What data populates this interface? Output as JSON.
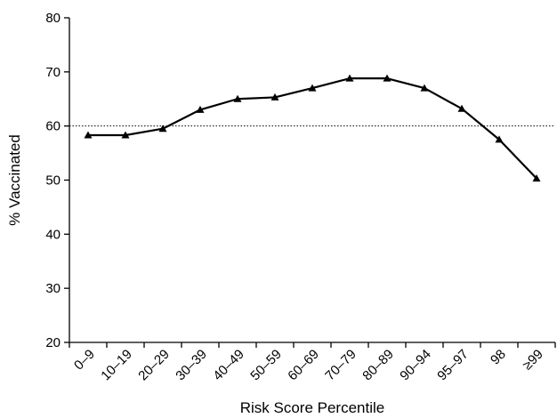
{
  "chart_data": {
    "type": "line",
    "title": "",
    "xlabel": "Risk Score Percentile",
    "ylabel": "% Vaccinated",
    "ylim": [
      20,
      80
    ],
    "yticks": [
      20,
      30,
      40,
      50,
      60,
      70,
      80
    ],
    "categories": [
      "0–9",
      "10–19",
      "20–29",
      "30–39",
      "40–49",
      "50–59",
      "60–69",
      "70–79",
      "80–89",
      "90–94",
      "95–97",
      "98",
      "≥99"
    ],
    "series": [
      {
        "values": [
          58.3,
          58.3,
          59.5,
          63.0,
          65.0,
          65.3,
          67.0,
          68.8,
          68.8,
          67.0,
          63.2,
          57.5,
          50.3
        ]
      }
    ],
    "reference_line": {
      "y": 60,
      "style": "dotted"
    },
    "marker": "triangle",
    "grid": false,
    "legend": "none"
  }
}
